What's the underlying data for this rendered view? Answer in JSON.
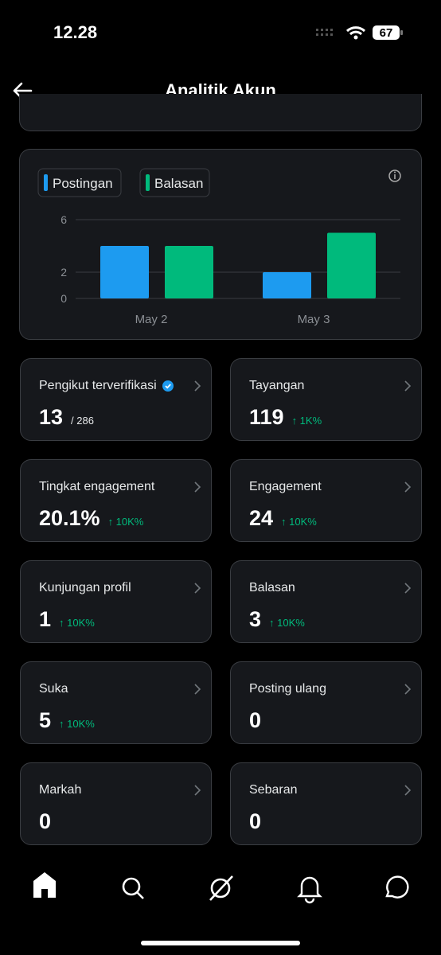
{
  "status_bar": {
    "time": "12.28",
    "battery": "67"
  },
  "header": {
    "title": "Analitik Akun"
  },
  "chart_data": {
    "type": "bar",
    "categories": [
      "May 2",
      "May 3"
    ],
    "series": [
      {
        "name": "Postingan",
        "color": "#1d9bf0",
        "values": [
          4,
          2
        ]
      },
      {
        "name": "Balasan",
        "color": "#00ba7c",
        "values": [
          4,
          5
        ]
      }
    ],
    "ylim": [
      0,
      6
    ],
    "yticks": [
      0,
      2,
      6
    ],
    "grid": true
  },
  "cards": [
    {
      "label": "Pengikut terverifikasi",
      "verified": true,
      "value": "13",
      "sub": "/ 286"
    },
    {
      "label": "Tayangan",
      "value": "119",
      "change": "↑ 1K%"
    },
    {
      "label": "Tingkat engagement",
      "value": "20.1%",
      "change": "↑ 10K%"
    },
    {
      "label": "Engagement",
      "value": "24",
      "change": "↑ 10K%"
    },
    {
      "label": "Kunjungan profil",
      "value": "1",
      "change": "↑ 10K%"
    },
    {
      "label": "Balasan",
      "value": "3",
      "change": "↑ 10K%"
    },
    {
      "label": "Suka",
      "value": "5",
      "change": "↑ 10K%"
    },
    {
      "label": "Posting ulang",
      "value": "0"
    },
    {
      "label": "Markah",
      "value": "0"
    },
    {
      "label": "Sebaran",
      "value": "0"
    }
  ]
}
